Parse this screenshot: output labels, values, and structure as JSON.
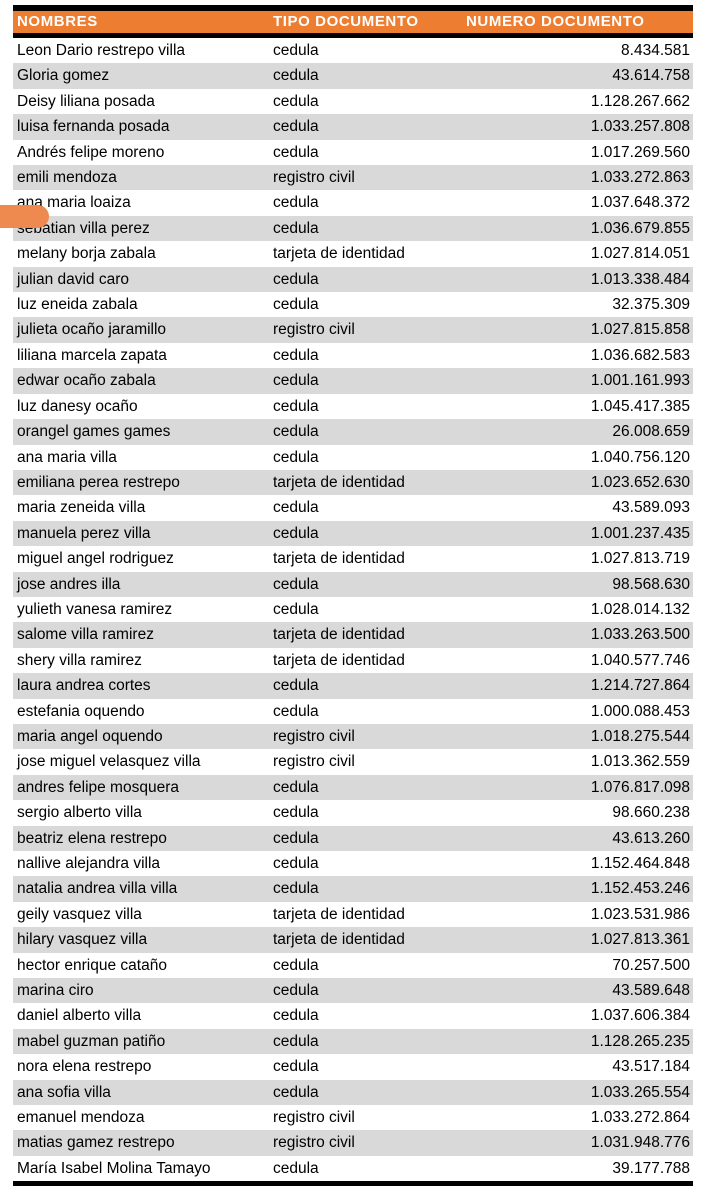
{
  "table": {
    "headers": [
      "NOMBRES",
      "TIPO DOCUMENTO",
      "NUMERO DOCUMENTO"
    ],
    "rows": [
      {
        "nombre": "Leon Dario restrepo villa",
        "tipo": "cedula",
        "numero": "8.434.581"
      },
      {
        "nombre": "Gloria gomez",
        "tipo": "cedula",
        "numero": "43.614.758"
      },
      {
        "nombre": "Deisy liliana posada",
        "tipo": "cedula",
        "numero": "1.128.267.662"
      },
      {
        "nombre": "luisa fernanda posada",
        "tipo": "cedula",
        "numero": "1.033.257.808"
      },
      {
        "nombre": "Andrés felipe moreno",
        "tipo": "cedula",
        "numero": "1.017.269.560"
      },
      {
        "nombre": "emili mendoza",
        "tipo": "registro civil",
        "numero": "1.033.272.863"
      },
      {
        "nombre": "ana maria loaiza",
        "tipo": "cedula",
        "numero": "1.037.648.372"
      },
      {
        "nombre": "sebatian villa perez",
        "tipo": "cedula",
        "numero": "1.036.679.855"
      },
      {
        "nombre": "melany borja zabala",
        "tipo": "tarjeta de identidad",
        "numero": "1.027.814.051"
      },
      {
        "nombre": "julian david caro",
        "tipo": "cedula",
        "numero": "1.013.338.484"
      },
      {
        "nombre": "luz eneida zabala",
        "tipo": "cedula",
        "numero": "32.375.309"
      },
      {
        "nombre": "julieta ocaño jaramillo",
        "tipo": "registro civil",
        "numero": "1.027.815.858"
      },
      {
        "nombre": "liliana marcela zapata",
        "tipo": "cedula",
        "numero": "1.036.682.583"
      },
      {
        "nombre": "edwar ocaño zabala",
        "tipo": "cedula",
        "numero": "1.001.161.993"
      },
      {
        "nombre": "luz danesy ocaño",
        "tipo": "cedula",
        "numero": "1.045.417.385"
      },
      {
        "nombre": "orangel games games",
        "tipo": "cedula",
        "numero": "26.008.659"
      },
      {
        "nombre": "ana maria villa",
        "tipo": "cedula",
        "numero": "1.040.756.120"
      },
      {
        "nombre": "emiliana perea restrepo",
        "tipo": "tarjeta de identidad",
        "numero": "1.023.652.630"
      },
      {
        "nombre": "maria zeneida villa",
        "tipo": "cedula",
        "numero": "43.589.093"
      },
      {
        "nombre": "manuela perez villa",
        "tipo": "cedula",
        "numero": "1.001.237.435"
      },
      {
        "nombre": "miguel angel rodriguez",
        "tipo": "tarjeta de identidad",
        "numero": "1.027.813.719"
      },
      {
        "nombre": "jose andres illa",
        "tipo": "cedula",
        "numero": "98.568.630"
      },
      {
        "nombre": "yulieth vanesa ramirez",
        "tipo": "cedula",
        "numero": "1.028.014.132"
      },
      {
        "nombre": "salome villa ramirez",
        "tipo": "tarjeta de identidad",
        "numero": "1.033.263.500"
      },
      {
        "nombre": "shery villa ramirez",
        "tipo": "tarjeta de identidad",
        "numero": "1.040.577.746"
      },
      {
        "nombre": "laura andrea cortes",
        "tipo": "cedula",
        "numero": "1.214.727.864"
      },
      {
        "nombre": "estefania oquendo",
        "tipo": "cedula",
        "numero": "1.000.088.453"
      },
      {
        "nombre": "maria angel oquendo",
        "tipo": "registro civil",
        "numero": "1.018.275.544"
      },
      {
        "nombre": "jose miguel velasquez villa",
        "tipo": "registro civil",
        "numero": "1.013.362.559"
      },
      {
        "nombre": "andres felipe mosquera",
        "tipo": "cedula",
        "numero": "1.076.817.098"
      },
      {
        "nombre": "sergio alberto villa",
        "tipo": "cedula",
        "numero": "98.660.238"
      },
      {
        "nombre": "beatriz elena restrepo",
        "tipo": "cedula",
        "numero": "43.613.260"
      },
      {
        "nombre": "nallive alejandra villa",
        "tipo": "cedula",
        "numero": "1.152.464.848"
      },
      {
        "nombre": "natalia andrea villa villa",
        "tipo": "cedula",
        "numero": "1.152.453.246"
      },
      {
        "nombre": "geily vasquez villa",
        "tipo": "tarjeta de identidad",
        "numero": "1.023.531.986"
      },
      {
        "nombre": "hilary vasquez villa",
        "tipo": "tarjeta de identidad",
        "numero": "1.027.813.361"
      },
      {
        "nombre": "hector enrique cataño",
        "tipo": "cedula",
        "numero": "70.257.500"
      },
      {
        "nombre": "marina ciro",
        "tipo": "cedula",
        "numero": "43.589.648"
      },
      {
        "nombre": "daniel alberto villa",
        "tipo": "cedula",
        "numero": "1.037.606.384"
      },
      {
        "nombre": "mabel guzman patiño",
        "tipo": "cedula",
        "numero": "1.128.265.235"
      },
      {
        "nombre": "nora elena restrepo",
        "tipo": "cedula",
        "numero": "43.517.184"
      },
      {
        "nombre": "ana sofia villa",
        "tipo": "cedula",
        "numero": "1.033.265.554"
      },
      {
        "nombre": "emanuel mendoza",
        "tipo": "registro civil",
        "numero": "1.033.272.864"
      },
      {
        "nombre": "matias gamez restrepo",
        "tipo": "registro civil",
        "numero": "1.031.948.776"
      },
      {
        "nombre": "María Isabel Molina Tamayo",
        "tipo": "cedula",
        "numero": "39.177.788"
      }
    ]
  },
  "colors": {
    "header_bg": "#ED7D31",
    "header_text": "#FFFFFF",
    "band_row": "#D9D9D9",
    "border": "#000000",
    "pointer_shape": "#EE8A4F"
  },
  "shapes": {
    "pointer": "orange-rounded-marker"
  }
}
